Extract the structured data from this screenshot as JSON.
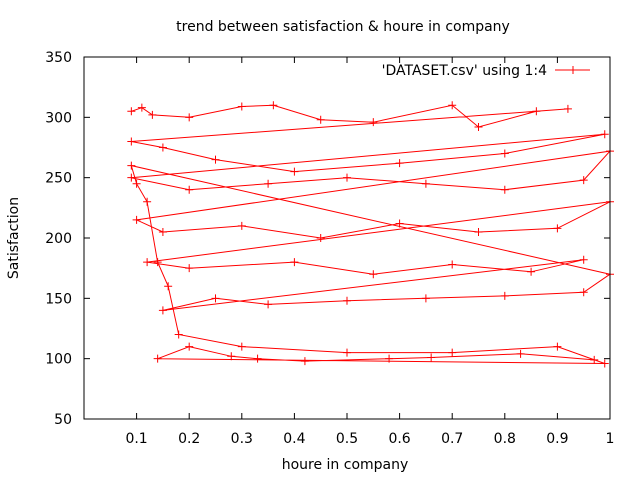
{
  "chart_data": {
    "type": "line",
    "title": "trend between satisfaction & houre in company",
    "xlabel": "houre in company",
    "ylabel": "Satisfaction",
    "xlim": [
      0,
      1
    ],
    "ylim": [
      50,
      350
    ],
    "xticks": [
      0.1,
      0.2,
      0.3,
      0.4,
      0.5,
      0.6,
      0.7,
      0.8,
      0.9,
      1
    ],
    "xtick_labels": [
      "0.1",
      "0.2",
      "0.3",
      "0.4",
      "0.5",
      "0.6",
      "0.7",
      "0.8",
      "0.9",
      "1"
    ],
    "yticks": [
      50,
      100,
      150,
      200,
      250,
      300,
      350
    ],
    "ytick_labels": [
      "50",
      "100",
      "150",
      "200",
      "250",
      "300",
      "350"
    ],
    "grid": false,
    "legend_position": "top-right",
    "series": [
      {
        "name": "'DATASET.csv' using 1:4",
        "color": "#ff0000",
        "marker": "plus",
        "x": [
          0.09,
          0.11,
          0.13,
          0.2,
          0.3,
          0.36,
          0.45,
          0.55,
          0.7,
          0.75,
          0.86,
          0.92,
          0.09,
          0.15,
          0.25,
          0.4,
          0.6,
          0.8,
          0.99,
          0.09,
          0.2,
          0.35,
          0.5,
          0.65,
          0.8,
          0.95,
          1.0,
          0.1,
          0.15,
          0.3,
          0.45,
          0.6,
          0.75,
          0.9,
          1.0,
          0.12,
          0.2,
          0.4,
          0.55,
          0.7,
          0.85,
          0.95,
          0.15,
          0.25,
          0.35,
          0.5,
          0.65,
          0.8,
          0.95,
          1.0,
          0.09,
          0.1,
          0.12,
          0.14,
          0.16,
          0.18,
          0.3,
          0.5,
          0.7,
          0.9,
          0.99,
          0.14,
          0.2,
          0.28,
          0.33,
          0.42,
          0.58,
          0.66,
          0.83,
          0.97
        ],
        "y": [
          305,
          308,
          302,
          300,
          309,
          310,
          298,
          296,
          310,
          292,
          305,
          307,
          280,
          275,
          265,
          255,
          262,
          270,
          286,
          250,
          240,
          245,
          250,
          245,
          240,
          248,
          272,
          215,
          205,
          210,
          200,
          212,
          205,
          208,
          230,
          180,
          175,
          180,
          170,
          178,
          172,
          182,
          140,
          150,
          145,
          148,
          150,
          152,
          155,
          170,
          260,
          245,
          230,
          180,
          160,
          120,
          110,
          105,
          105,
          110,
          96,
          100,
          110,
          102,
          100,
          98,
          100,
          101,
          104,
          99
        ]
      }
    ]
  }
}
